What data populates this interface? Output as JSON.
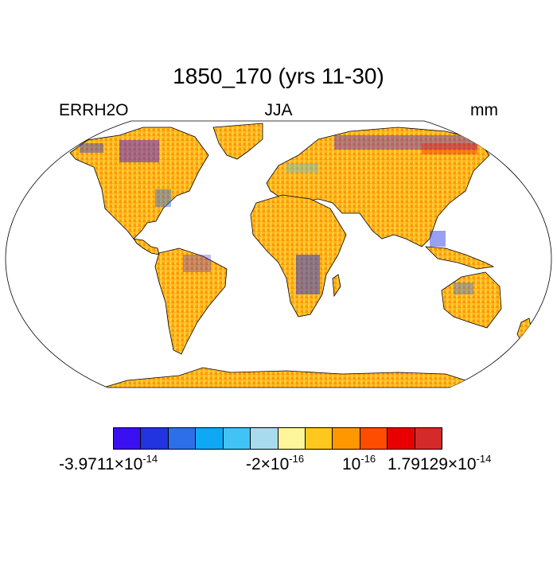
{
  "title": "1850_170 (yrs 11-30)",
  "left_label": "ERRH2O",
  "center_label": "JJA",
  "right_label": "mm",
  "colorbar": {
    "colors": [
      "#3b10f0",
      "#2233e0",
      "#2d6fe8",
      "#0ea8f5",
      "#41c4f5",
      "#a9dbef",
      "#fff59a",
      "#ffc81e",
      "#ff9800",
      "#ff4d00",
      "#e80000",
      "#d42a2a"
    ],
    "labels": [
      {
        "mant": "-3.9711×10",
        "exp": "-14"
      },
      {
        "mant": "-2×10",
        "exp": "-16"
      },
      {
        "mant": "10",
        "exp": "-16"
      },
      {
        "mant": "1.79129×10",
        "exp": "-14"
      }
    ]
  }
}
